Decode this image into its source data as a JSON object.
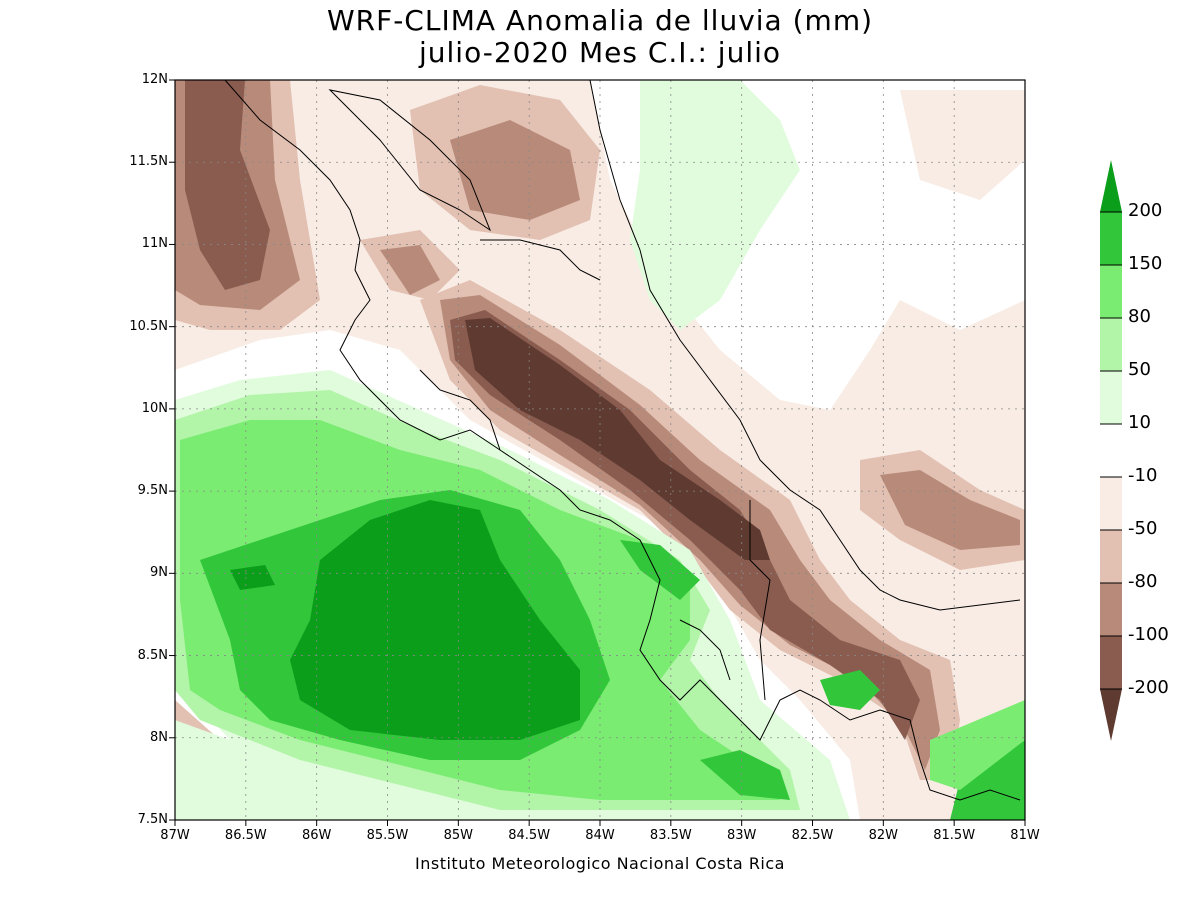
{
  "title_line1": "WRF-CLIMA Anomalia de lluvia (mm)",
  "title_line2": "julio-2020 Mes C.I.: julio",
  "footer": "Instituto Meteorologico Nacional Costa Rica",
  "axes": {
    "lat_labels": [
      "7.5N",
      "8N",
      "8.5N",
      "9N",
      "9.5N",
      "10N",
      "10.5N",
      "11N",
      "11.5N",
      "12N"
    ],
    "lat_values": [
      7.5,
      8,
      8.5,
      9,
      9.5,
      10,
      10.5,
      11,
      11.5,
      12
    ],
    "lon_labels": [
      "87W",
      "86.5W",
      "86W",
      "85.5W",
      "85W",
      "84.5W",
      "84W",
      "83.5W",
      "83W",
      "82.5W",
      "82W",
      "81.5W",
      "81W"
    ],
    "lon_values": [
      -87,
      -86.5,
      -86,
      -85.5,
      -85,
      -84.5,
      -84,
      -83.5,
      -83,
      -82.5,
      -82,
      -81.5,
      -81
    ],
    "lon_range": [
      -87,
      -81
    ],
    "lat_range": [
      7.5,
      12
    ],
    "grid": true
  },
  "colorbar": {
    "labels": [
      "200",
      "150",
      "80",
      "50",
      "10",
      "-10",
      "-50",
      "-80",
      "-100",
      "-200"
    ],
    "colors": [
      "#0a9e1a",
      "#32c63a",
      "#7aec72",
      "#b2f4a8",
      "#e0fcdc",
      "#ffffff",
      "#f8ece4",
      "#e2c0b2",
      "#b88a7a",
      "#8a5c50",
      "#5e3a30"
    ]
  },
  "field_colors": {
    "dry_200": "#5e3a30",
    "dry_100": "#8a5c50",
    "dry_80": "#b88a7a",
    "dry_50": "#e2c0b2",
    "dry_10": "#f8ece4",
    "neutral": "#ffffff",
    "wet_10": "#e0fcdc",
    "wet_50": "#b2f4a8",
    "wet_80": "#7aec72",
    "wet_150": "#32c63a",
    "wet_200": "#0a9e1a"
  }
}
